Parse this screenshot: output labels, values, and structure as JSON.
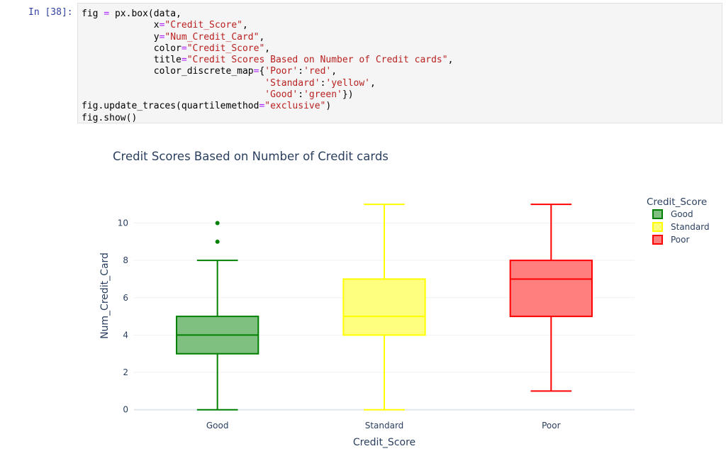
{
  "cell": {
    "prompt": "In [38]:",
    "code_lines": [
      [
        {
          "t": "fig "
        },
        {
          "t": "=",
          "c": "op"
        },
        {
          "t": " px.box(data,"
        }
      ],
      [
        {
          "t": "             x"
        },
        {
          "t": "=",
          "c": "op"
        },
        {
          "t": "\"Credit_Score\"",
          "c": "str"
        },
        {
          "t": ","
        }
      ],
      [
        {
          "t": "             y"
        },
        {
          "t": "=",
          "c": "op"
        },
        {
          "t": "\"Num_Credit_Card\"",
          "c": "str"
        },
        {
          "t": ","
        }
      ],
      [
        {
          "t": "             color"
        },
        {
          "t": "=",
          "c": "op"
        },
        {
          "t": "\"Credit_Score\"",
          "c": "str"
        },
        {
          "t": ","
        }
      ],
      [
        {
          "t": "             title"
        },
        {
          "t": "=",
          "c": "op"
        },
        {
          "t": "\"Credit Scores Based on Number of Credit cards\"",
          "c": "str"
        },
        {
          "t": ","
        }
      ],
      [
        {
          "t": "             color_discrete_map"
        },
        {
          "t": "=",
          "c": "op"
        },
        {
          "t": "{"
        },
        {
          "t": "'Poor'",
          "c": "str"
        },
        {
          "t": ":"
        },
        {
          "t": "'red'",
          "c": "str"
        },
        {
          "t": ","
        }
      ],
      [
        {
          "t": "                                 "
        },
        {
          "t": "'Standard'",
          "c": "str"
        },
        {
          "t": ":"
        },
        {
          "t": "'yellow'",
          "c": "str"
        },
        {
          "t": ","
        }
      ],
      [
        {
          "t": "                                 "
        },
        {
          "t": "'Good'",
          "c": "str"
        },
        {
          "t": ":"
        },
        {
          "t": "'green'",
          "c": "str"
        },
        {
          "t": "})"
        }
      ],
      [
        {
          "t": "fig.update_traces(quartilemethod"
        },
        {
          "t": "=",
          "c": "op"
        },
        {
          "t": "\"exclusive\"",
          "c": "str"
        },
        {
          "t": ")"
        }
      ],
      [
        {
          "t": "fig.show()"
        }
      ]
    ]
  },
  "chart_data": {
    "type": "box",
    "title": "Credit Scores Based on Number of Credit cards",
    "xlabel": "Credit_Score",
    "ylabel": "Num_Credit_Card",
    "ylim": [
      -0.2,
      11.5
    ],
    "yticks": [
      0,
      2,
      4,
      6,
      8,
      10
    ],
    "grid": true,
    "legend": {
      "title": "Credit_Score",
      "position": "top-right"
    },
    "categories": [
      "Good",
      "Standard",
      "Poor"
    ],
    "series": [
      {
        "name": "Good",
        "color": "#008000",
        "fill": "#7fbf7f",
        "min": 0,
        "q1": 3,
        "median": 4,
        "q3": 5,
        "max": 8,
        "outliers": [
          9,
          10
        ]
      },
      {
        "name": "Standard",
        "color": "#ffff00",
        "fill": "#ffff7f",
        "min": 0,
        "q1": 4,
        "median": 5,
        "q3": 7,
        "max": 11,
        "outliers": []
      },
      {
        "name": "Poor",
        "color": "#ff0000",
        "fill": "#ff7f7f",
        "min": 1,
        "q1": 5,
        "median": 7,
        "q3": 8,
        "max": 11,
        "outliers": []
      }
    ]
  }
}
